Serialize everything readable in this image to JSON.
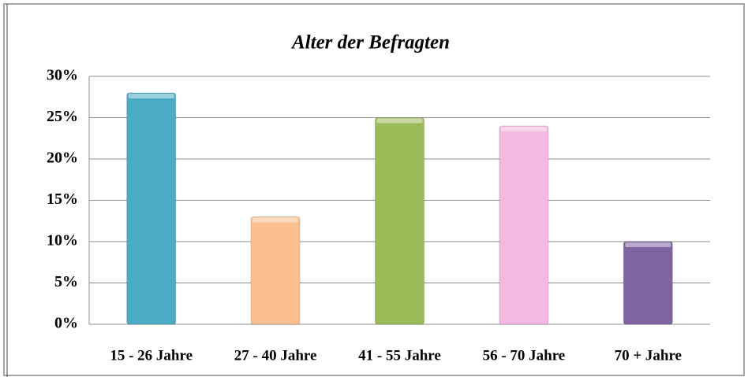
{
  "chart_data": {
    "type": "bar",
    "title": "Alter der Befragten",
    "categories": [
      "15 - 26 Jahre",
      "27 - 40 Jahre",
      "41 - 55 Jahre",
      "56 - 70 Jahre",
      "70 + Jahre"
    ],
    "values": [
      28,
      13,
      25,
      24,
      10
    ],
    "colors": [
      "#4bacc6",
      "#fac08f",
      "#9bbb59",
      "#f5b9e1",
      "#8064a2"
    ],
    "ylim": [
      0,
      30
    ],
    "yticks": [
      {
        "value": 0,
        "label": "0%"
      },
      {
        "value": 5,
        "label": "5%"
      },
      {
        "value": 10,
        "label": "10%"
      },
      {
        "value": 15,
        "label": "15%"
      },
      {
        "value": 20,
        "label": "20%"
      },
      {
        "value": 25,
        "label": "25%"
      },
      {
        "value": 30,
        "label": "30%"
      }
    ],
    "grid": true
  }
}
